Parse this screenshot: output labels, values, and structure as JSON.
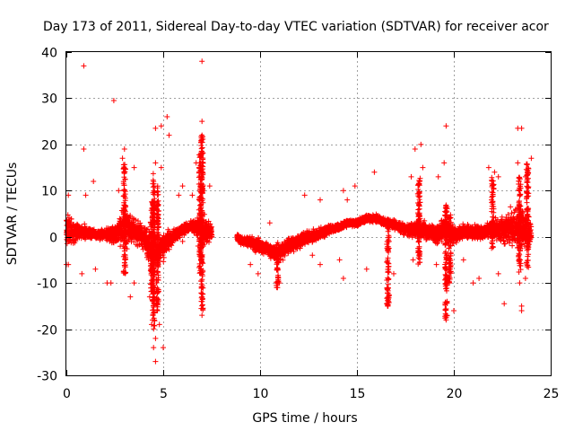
{
  "chart_data": {
    "type": "scatter",
    "title": "Day 173 of 2011, Sidereal Day-to-day VTEC variation (SDTVAR) for receiver acor",
    "xlabel": "GPS time / hours",
    "ylabel": "SDTVAR / TECUs",
    "xlim": [
      0,
      25
    ],
    "ylim": [
      -30,
      40
    ],
    "xticks": [
      0,
      5,
      10,
      15,
      20,
      25
    ],
    "yticks": [
      -30,
      -20,
      -10,
      0,
      10,
      20,
      30,
      40
    ],
    "xtick_labels": [
      "0",
      "5",
      "10",
      "15",
      "20",
      "25"
    ],
    "ytick_labels": [
      "-30",
      "-20",
      "-10",
      "0",
      "10",
      "20",
      "30",
      "40"
    ],
    "grid": true,
    "marker": "+",
    "colors": {
      "points": "#ff0000"
    },
    "series": [
      {
        "name": "SDTVAR",
        "gap": [
          7.5,
          8.8
        ],
        "envelope_x": [
          0,
          0.5,
          1,
          1.5,
          2,
          2.5,
          3,
          3.5,
          4,
          4.5,
          5,
          5.5,
          6,
          6.5,
          7,
          7.5,
          8.8,
          9,
          9.5,
          10,
          10.5,
          11,
          11.5,
          12,
          12.5,
          13,
          13.5,
          14,
          14.5,
          15,
          15.5,
          16,
          16.5,
          17,
          17.5,
          18,
          18.5,
          19,
          19.5,
          20,
          20.5,
          21,
          21.5,
          22,
          22.5,
          23,
          23.5,
          24
        ],
        "envelope_low": [
          -4,
          -2,
          -1,
          -1,
          -1,
          -2,
          -3,
          -2,
          -3,
          -10,
          -6,
          -2,
          0,
          1,
          -3,
          -1,
          -1,
          -2,
          -3,
          -4,
          -5,
          -6,
          -4,
          -3,
          -2,
          -1,
          0,
          1,
          2,
          2,
          3,
          3,
          2,
          1,
          0,
          -1,
          -1,
          -2,
          -2,
          -2,
          -1,
          -1,
          -1,
          -1,
          -2,
          -3,
          -4,
          -3
        ],
        "envelope_high": [
          6,
          4,
          3,
          2,
          2,
          3,
          8,
          5,
          3,
          4,
          2,
          2,
          3,
          4,
          6,
          3,
          1,
          0,
          1,
          0,
          -1,
          -1,
          0,
          1,
          2,
          2,
          3,
          3,
          4,
          4,
          5,
          5,
          4,
          4,
          3,
          4,
          4,
          3,
          5,
          3,
          3,
          3,
          3,
          4,
          5,
          7,
          8,
          4
        ],
        "outliers": [
          [
            0.9,
            37
          ],
          [
            2.45,
            29.5
          ],
          [
            7.0,
            38
          ],
          [
            0.9,
            19
          ],
          [
            5.2,
            26
          ],
          [
            5.3,
            22
          ],
          [
            7.0,
            25
          ],
          [
            19.6,
            24
          ],
          [
            23.5,
            23.5
          ],
          [
            23.3,
            23.5
          ],
          [
            18.3,
            20
          ],
          [
            18.0,
            19
          ],
          [
            4.6,
            23.5
          ],
          [
            4.9,
            24
          ],
          [
            7.0,
            22
          ],
          [
            3.0,
            19
          ],
          [
            2.9,
            17
          ],
          [
            4.6,
            16
          ],
          [
            6.7,
            16
          ],
          [
            3.5,
            15
          ],
          [
            4.9,
            15
          ],
          [
            24.0,
            17
          ],
          [
            23.3,
            16
          ],
          [
            18.4,
            15
          ],
          [
            17.8,
            13
          ],
          [
            15.9,
            14
          ],
          [
            19.5,
            16
          ],
          [
            19.2,
            13
          ],
          [
            23.7,
            13
          ],
          [
            1.4,
            12
          ],
          [
            14.9,
            11
          ],
          [
            14.3,
            10
          ],
          [
            12.3,
            9
          ],
          [
            14.5,
            8
          ],
          [
            13.1,
            8
          ],
          [
            21.8,
            15
          ],
          [
            22.1,
            14
          ],
          [
            22.3,
            13
          ],
          [
            5.8,
            9
          ],
          [
            6.0,
            11
          ],
          [
            7.4,
            11
          ],
          [
            6.5,
            9
          ],
          [
            2.7,
            10
          ],
          [
            0.1,
            9
          ],
          [
            1.0,
            9
          ],
          [
            10.5,
            3
          ],
          [
            4.6,
            -22
          ],
          [
            4.5,
            -24
          ],
          [
            4.6,
            -27
          ],
          [
            5.0,
            -24
          ],
          [
            4.4,
            -19
          ],
          [
            4.8,
            -19
          ],
          [
            4.3,
            -13
          ],
          [
            7.0,
            -17
          ],
          [
            7.0,
            -13
          ],
          [
            16.6,
            -14
          ],
          [
            16.6,
            -15
          ],
          [
            19.6,
            -17
          ],
          [
            19.6,
            -18
          ],
          [
            20.0,
            -16
          ],
          [
            22.6,
            -14.5
          ],
          [
            23.5,
            -15
          ],
          [
            23.5,
            -16
          ],
          [
            2.3,
            -10
          ],
          [
            2.1,
            -10
          ],
          [
            3.3,
            -13
          ],
          [
            3.5,
            -10
          ],
          [
            0.0,
            -6
          ],
          [
            0.1,
            -6
          ],
          [
            1.5,
            -7
          ],
          [
            0.8,
            -8
          ],
          [
            10.9,
            -11
          ],
          [
            11.0,
            -10
          ],
          [
            13.1,
            -6
          ],
          [
            14.3,
            -9
          ],
          [
            14.1,
            -5
          ],
          [
            16.9,
            -8
          ],
          [
            19.1,
            -6
          ],
          [
            19.7,
            -9
          ],
          [
            21.0,
            -10
          ],
          [
            21.3,
            -9
          ],
          [
            22.3,
            -8
          ],
          [
            23.4,
            -10
          ],
          [
            23.7,
            -9
          ],
          [
            9.5,
            -6
          ],
          [
            9.9,
            -8
          ],
          [
            15.5,
            -7
          ],
          [
            12.7,
            -4
          ],
          [
            20.5,
            -5
          ],
          [
            17.9,
            -5
          ],
          [
            18.2,
            -3
          ],
          [
            6.0,
            -1
          ],
          [
            6.8,
            -2
          ],
          [
            8.9,
            -1
          ],
          [
            9.0,
            0
          ]
        ],
        "spikes": [
          {
            "x": 4.5,
            "low": -20,
            "high": 14
          },
          {
            "x": 4.7,
            "low": -16,
            "high": 11
          },
          {
            "x": 4.4,
            "low": -12,
            "high": 8
          },
          {
            "x": 3.0,
            "low": -8,
            "high": 16
          },
          {
            "x": 7.0,
            "low": -16,
            "high": 22
          },
          {
            "x": 6.9,
            "low": -8,
            "high": 18
          },
          {
            "x": 16.6,
            "low": -15,
            "high": 3
          },
          {
            "x": 18.2,
            "low": -6,
            "high": 13
          },
          {
            "x": 19.6,
            "low": -18,
            "high": 7
          },
          {
            "x": 19.8,
            "low": -10,
            "high": 5
          },
          {
            "x": 23.4,
            "low": -9,
            "high": 13
          },
          {
            "x": 23.8,
            "low": -7,
            "high": 16
          },
          {
            "x": 22.0,
            "low": -3,
            "high": 13
          },
          {
            "x": 10.9,
            "low": -11,
            "high": -2
          }
        ]
      }
    ]
  }
}
